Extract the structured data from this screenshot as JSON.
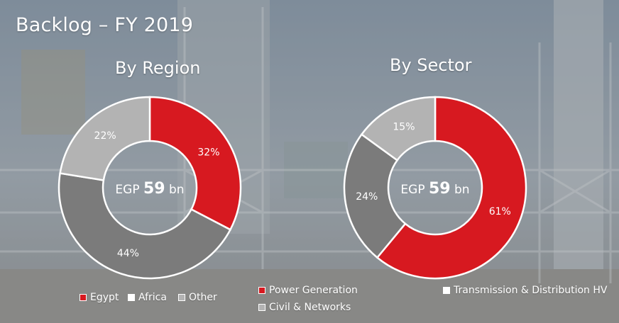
{
  "slide": {
    "title": "Backlog – FY 2019"
  },
  "colors": {
    "red": "#d71920",
    "light_gray": "#b3b3b3",
    "dark_gray": "#7b7b7b",
    "white": "#ffffff"
  },
  "chart_data": [
    {
      "type": "pie",
      "title": "By Region",
      "center_label": {
        "prefix": "EGP",
        "value": "59",
        "suffix": "bn"
      },
      "series": [
        {
          "name": "Egypt",
          "value": 32,
          "label": "32%",
          "color": "#d71920"
        },
        {
          "name": "Other",
          "value": 44,
          "label": "44%",
          "color": "#7b7b7b"
        },
        {
          "name": "Africa",
          "value": 22,
          "label": "22%",
          "color": "#b3b3b3"
        }
      ],
      "legend": [
        {
          "label": "Egypt",
          "color": "#d71920"
        },
        {
          "label": "Africa",
          "color": "#ffffff"
        },
        {
          "label": "Other",
          "color": "#b3b3b3"
        }
      ]
    },
    {
      "type": "pie",
      "title": "By Sector",
      "center_label": {
        "prefix": "EGP",
        "value": "59",
        "suffix": "bn"
      },
      "series": [
        {
          "name": "Power Generation",
          "value": 61,
          "label": "61%",
          "color": "#d71920"
        },
        {
          "name": "Transmission & Distribution HV",
          "value": 24,
          "label": "24%",
          "color": "#7b7b7b"
        },
        {
          "name": "Civil & Networks",
          "value": 15,
          "label": "15%",
          "color": "#b3b3b3"
        }
      ],
      "legend": [
        {
          "label": "Power Generation",
          "color": "#d71920"
        },
        {
          "label": "Transmission & Distribution HV",
          "color": "#ffffff"
        },
        {
          "label": "Civil & Networks",
          "color": "#b3b3b3"
        }
      ]
    }
  ]
}
